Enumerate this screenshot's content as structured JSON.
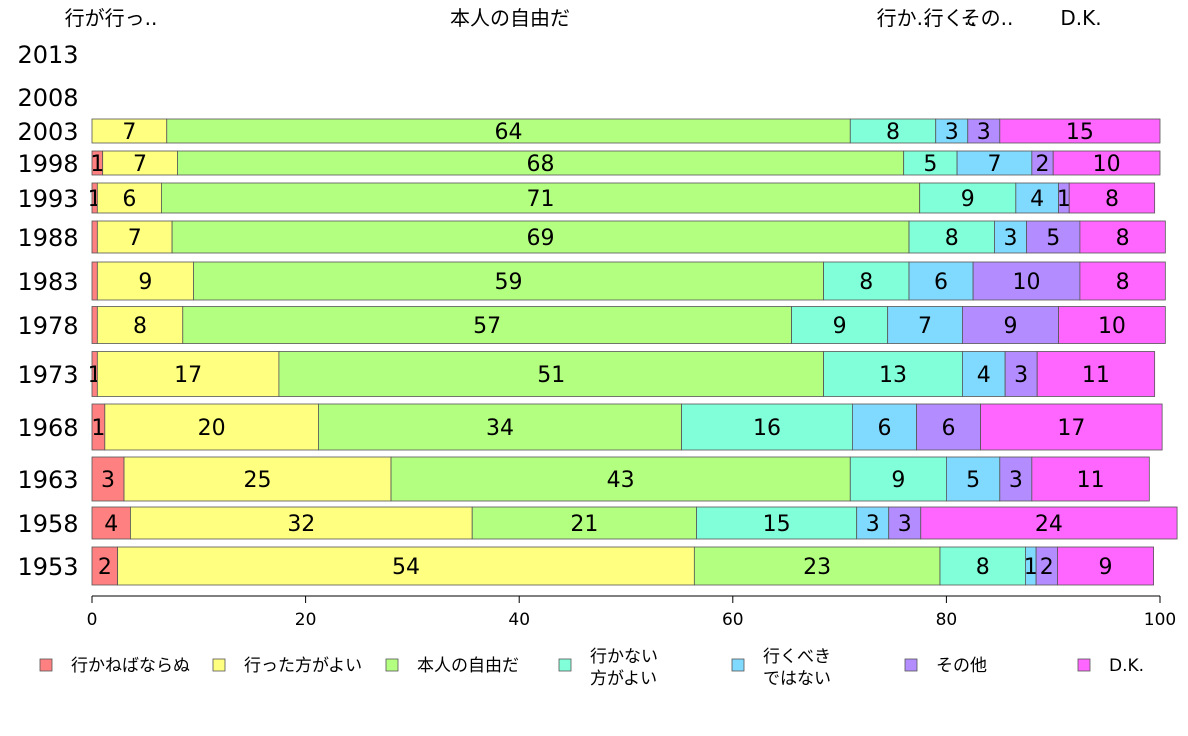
{
  "chart_data": {
    "type": "bar",
    "orientation": "horizontal",
    "stacked": true,
    "top_labels": [
      {
        "text": "行が行っ..",
        "series_index": 0
      },
      {
        "text": "本人の自由だ",
        "series_index": 2
      },
      {
        "text": "行か..",
        "series_index": 3
      },
      {
        "text": "行く..",
        "series_index": 4
      },
      {
        "text": "その..",
        "series_index": 5
      },
      {
        "text": "D.K.",
        "series_index": 6
      }
    ],
    "categories": [
      "2013",
      "2008",
      "2003",
      "1998",
      "1993",
      "1988",
      "1983",
      "1978",
      "1973",
      "1968",
      "1963",
      "1958",
      "1953"
    ],
    "series": [
      {
        "name": "行かねばならぬ",
        "color": "#ff8080",
        "values": [
          null,
          null,
          0,
          1,
          0.5,
          0.5,
          0.5,
          0.5,
          0.5,
          1.2,
          3,
          3.6,
          2.4
        ]
      },
      {
        "name": "行った方がよい",
        "color": "#ffff80",
        "values": [
          null,
          null,
          7,
          7,
          6,
          7,
          9,
          8,
          17,
          20,
          25,
          32,
          54
        ]
      },
      {
        "name": "本人の自由だ",
        "color": "#b3ff80",
        "values": [
          null,
          null,
          64,
          68,
          71,
          69,
          59,
          57,
          51,
          34,
          43,
          21,
          23
        ]
      },
      {
        "name": "行かない方がよい",
        "color": "#80ffd9",
        "values": [
          null,
          null,
          8,
          5,
          9,
          8,
          8,
          9,
          13,
          16,
          9,
          15,
          8
        ]
      },
      {
        "name": "行くべきではない",
        "color": "#80d9ff",
        "values": [
          null,
          null,
          3,
          7,
          4,
          3,
          6,
          7,
          4,
          6,
          5,
          3,
          1
        ]
      },
      {
        "name": "その他",
        "color": "#b38cff",
        "values": [
          null,
          null,
          3,
          2,
          1,
          5,
          10,
          9,
          3,
          6,
          3,
          3,
          2
        ]
      },
      {
        "name": "D.K.",
        "color": "#ff66ff",
        "values": [
          null,
          null,
          15,
          10,
          8,
          8,
          8,
          10,
          11,
          17,
          11,
          24,
          9
        ]
      }
    ],
    "labels": [
      [],
      [],
      [
        "",
        "7",
        "64",
        "8",
        "3",
        "3",
        "15"
      ],
      [
        "1",
        "7",
        "68",
        "5",
        "7",
        "2",
        "10"
      ],
      [
        "1",
        "6",
        "71",
        "9",
        "4",
        "1",
        "8"
      ],
      [
        "",
        "7",
        "69",
        "8",
        "3",
        "5",
        "8"
      ],
      [
        "",
        "9",
        "59",
        "8",
        "6",
        "10",
        "8"
      ],
      [
        "",
        "8",
        "57",
        "9",
        "7",
        "9",
        "10"
      ],
      [
        "1",
        "17",
        "51",
        "13",
        "4",
        "3",
        "11"
      ],
      [
        "1",
        "20",
        "34",
        "16",
        "6",
        "6",
        "17"
      ],
      [
        "3",
        "25",
        "43",
        "9",
        "5",
        "3",
        "11"
      ],
      [
        "4",
        "32",
        "21",
        "15",
        "3",
        "3",
        "24"
      ],
      [
        "2",
        "54",
        "23",
        "8",
        "1",
        "2",
        "9"
      ]
    ],
    "xlim": [
      0,
      100
    ],
    "xticks": [
      0,
      20,
      40,
      60,
      80,
      100
    ],
    "legend": {
      "position": "bottom",
      "items": [
        {
          "lines": [
            "行かねばならぬ"
          ],
          "series_index": 0
        },
        {
          "lines": [
            "行った方がよい"
          ],
          "series_index": 1
        },
        {
          "lines": [
            "本人の自由だ"
          ],
          "series_index": 2
        },
        {
          "lines": [
            "行かない",
            "方がよい"
          ],
          "series_index": 3
        },
        {
          "lines": [
            "行くべき",
            "ではない"
          ],
          "series_index": 4
        },
        {
          "lines": [
            "その他"
          ],
          "series_index": 5
        },
        {
          "lines": [
            "D.K."
          ],
          "series_index": 6
        }
      ]
    },
    "grid": false
  }
}
